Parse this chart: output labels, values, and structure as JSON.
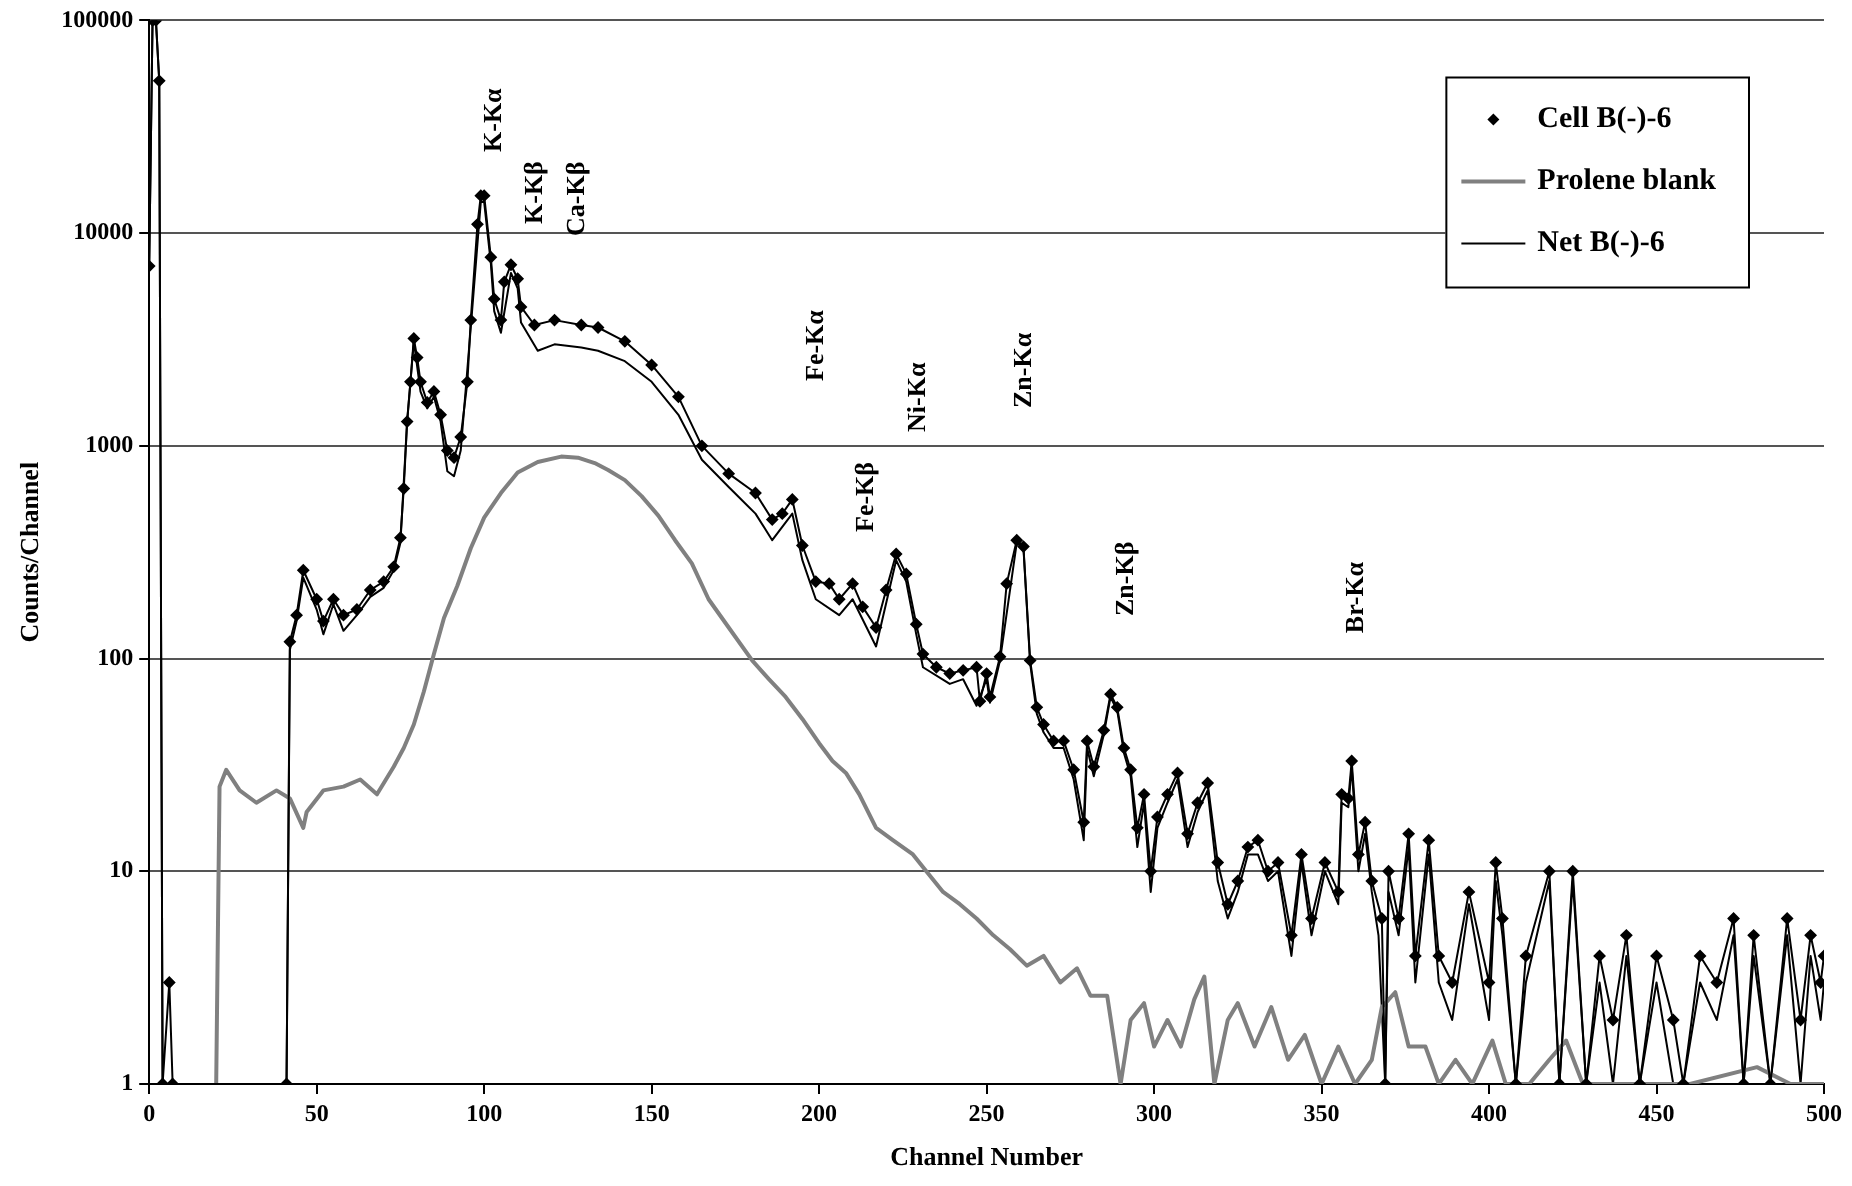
{
  "chart_data": {
    "type": "line",
    "xlabel": "Channel Number",
    "ylabel": "Counts/Channel",
    "xlim": [
      0,
      500
    ],
    "xticks": [
      0,
      50,
      100,
      150,
      200,
      250,
      300,
      350,
      400,
      450,
      500
    ],
    "ylim": [
      1,
      100000
    ],
    "yticks": [
      1,
      10,
      100,
      1000,
      10000,
      100000
    ],
    "log": "y",
    "grid": "y",
    "legend": "top right",
    "series": [
      {
        "name": "Cell B(-)-6",
        "color": "#000000",
        "marker": "diamond",
        "x": [
          0,
          1,
          2,
          3,
          4,
          6,
          7,
          41,
          42,
          44,
          46,
          50,
          52,
          55,
          58,
          62,
          66,
          70,
          73,
          75,
          76,
          77,
          78,
          79,
          80,
          81,
          83,
          85,
          87,
          89,
          91,
          93,
          95,
          96,
          98,
          99,
          100,
          102,
          103,
          105,
          106,
          108,
          110,
          111,
          115,
          121,
          129,
          134,
          142,
          150,
          158,
          165,
          173,
          181,
          186,
          189,
          192,
          195,
          199,
          203,
          206,
          210,
          213,
          217,
          220,
          223,
          226,
          229,
          231,
          235,
          239,
          243,
          247,
          248,
          250,
          251,
          254,
          256,
          259,
          261,
          263,
          265,
          267,
          270,
          273,
          276,
          279,
          280,
          282,
          285,
          287,
          289,
          291,
          293,
          295,
          297,
          299,
          301,
          304,
          307,
          310,
          313,
          316,
          319,
          322,
          325,
          328,
          331,
          334,
          337,
          341,
          344,
          347,
          351,
          355,
          356,
          358,
          359,
          361,
          363,
          365,
          368,
          369,
          370,
          373,
          376,
          378,
          382,
          385,
          389,
          394,
          400,
          402,
          404,
          408,
          411,
          418,
          421,
          425,
          429,
          433,
          437,
          441,
          445,
          450,
          455,
          458,
          463,
          468,
          473,
          476,
          479,
          484,
          489,
          493,
          496,
          499,
          500
        ],
        "values": [
          7000,
          100000,
          100000,
          52000,
          1,
          3,
          1,
          1,
          120,
          160,
          260,
          190,
          150,
          190,
          160,
          170,
          210,
          230,
          270,
          370,
          630,
          1300,
          2000,
          3200,
          2600,
          2000,
          1600,
          1800,
          1400,
          950,
          880,
          1100,
          2000,
          3900,
          11000,
          15000,
          15000,
          7700,
          4900,
          3900,
          5900,
          7100,
          6100,
          4500,
          3700,
          3900,
          3700,
          3600,
          3100,
          2400,
          1700,
          1000,
          740,
          600,
          450,
          480,
          560,
          340,
          230,
          225,
          190,
          225,
          175,
          140,
          210,
          310,
          250,
          145,
          105,
          91,
          85,
          88,
          91,
          63,
          85,
          66,
          102,
          225,
          360,
          336,
          98,
          59,
          49,
          41,
          41,
          30,
          17,
          41,
          31,
          46,
          68,
          59,
          38,
          30,
          16,
          23,
          10,
          18,
          23,
          29,
          15,
          21,
          26,
          11,
          7,
          9,
          13,
          14,
          10,
          11,
          5,
          12,
          6,
          11,
          8,
          23,
          22,
          33,
          12,
          17,
          9,
          6,
          1,
          10,
          6,
          15,
          4,
          14,
          4,
          3,
          8,
          3,
          11,
          6,
          1,
          4,
          10,
          1,
          10,
          1,
          4,
          2,
          5,
          1,
          4,
          2,
          1,
          4,
          3,
          6,
          1,
          5,
          1,
          6,
          2,
          5,
          3,
          4
        ]
      },
      {
        "name": "Prolene blank",
        "color": "#808080",
        "x": [
          20,
          21,
          23,
          27,
          32,
          38,
          42,
          46,
          47,
          52,
          58,
          63,
          68,
          73,
          76,
          79,
          82,
          85,
          88,
          92,
          96,
          100,
          105,
          110,
          116,
          123,
          128,
          133,
          137,
          142,
          147,
          152,
          157,
          162,
          167,
          173,
          180,
          185,
          190,
          195,
          200,
          204,
          208,
          212,
          217,
          222,
          228,
          232,
          237,
          242,
          247,
          252,
          257,
          262,
          267,
          272,
          277,
          281,
          286,
          290,
          293,
          297,
          300,
          304,
          308,
          312,
          315,
          318,
          322,
          325,
          330,
          335,
          340,
          345,
          350,
          355,
          360,
          365,
          368,
          372,
          376,
          381,
          385,
          390,
          395,
          401,
          405,
          412,
          418,
          423,
          428,
          440,
          460,
          480,
          490,
          500
        ],
        "values": [
          1,
          25,
          30,
          24,
          21,
          24,
          22,
          16,
          19,
          24,
          25,
          27,
          23,
          31,
          38,
          49,
          70,
          105,
          155,
          220,
          330,
          460,
          600,
          750,
          840,
          890,
          880,
          830,
          770,
          690,
          580,
          470,
          360,
          280,
          190,
          140,
          98,
          80,
          66,
          52,
          40,
          33,
          29,
          23,
          16,
          14,
          12,
          10,
          8,
          7,
          6,
          5,
          4.3,
          3.6,
          4,
          3,
          3.5,
          2.6,
          2.6,
          1,
          2,
          2.4,
          1.5,
          2,
          1.5,
          2.5,
          3.2,
          1,
          2,
          2.4,
          1.5,
          2.3,
          1.3,
          1.7,
          1,
          1.5,
          1,
          1.3,
          2.3,
          2.7,
          1.5,
          1.5,
          1,
          1.3,
          1,
          1.6,
          1,
          1,
          1.3,
          1.6,
          1,
          1,
          1,
          1.2,
          1,
          1
        ]
      },
      {
        "name": "Net B(-)-6",
        "color": "#000000",
        "x": [
          0,
          1,
          2,
          3,
          4,
          41,
          42,
          44,
          46,
          50,
          52,
          55,
          58,
          62,
          66,
          70,
          73,
          75,
          77,
          79,
          81,
          83,
          85,
          87,
          89,
          91,
          93,
          96,
          99,
          100,
          102,
          103,
          105,
          108,
          110,
          111,
          116,
          121,
          129,
          134,
          142,
          150,
          158,
          165,
          173,
          181,
          186,
          192,
          195,
          199,
          206,
          210,
          217,
          223,
          226,
          229,
          231,
          239,
          243,
          247,
          250,
          251,
          254,
          259,
          261,
          263,
          265,
          267,
          270,
          273,
          276,
          279,
          280,
          282,
          285,
          287,
          289,
          291,
          293,
          295,
          297,
          299,
          301,
          304,
          307,
          310,
          313,
          316,
          319,
          322,
          325,
          328,
          331,
          334,
          337,
          341,
          344,
          347,
          351,
          355,
          356,
          358,
          359,
          361,
          363,
          365,
          367,
          369,
          370,
          373,
          376,
          378,
          382,
          385,
          389,
          394,
          400,
          402,
          404,
          408,
          411,
          418,
          421,
          425,
          429,
          433,
          437,
          441,
          445,
          450,
          455,
          458,
          463,
          468,
          473,
          476,
          479,
          484,
          489,
          493,
          496,
          499,
          500
        ],
        "values": [
          7000,
          100000,
          100000,
          52000,
          1,
          1,
          110,
          150,
          240,
          170,
          130,
          180,
          135,
          160,
          195,
          215,
          260,
          350,
          1300,
          3100,
          1800,
          1500,
          1700,
          1300,
          760,
          720,
          950,
          3600,
          14000,
          14000,
          7200,
          4300,
          3400,
          6500,
          5500,
          3800,
          2800,
          3000,
          2900,
          2800,
          2500,
          2000,
          1400,
          860,
          640,
          480,
          360,
          480,
          290,
          190,
          160,
          190,
          114,
          290,
          230,
          130,
          91,
          76,
          80,
          60,
          80,
          62,
          98,
          350,
          330,
          95,
          55,
          45,
          38,
          38,
          27,
          14,
          38,
          28,
          44,
          66,
          57,
          36,
          28,
          13,
          21,
          8,
          16,
          21,
          27,
          13,
          19,
          24,
          9,
          6,
          8,
          12,
          12,
          9,
          10,
          4,
          11,
          5,
          10,
          7,
          21,
          20,
          31,
          10,
          15,
          8,
          5,
          1,
          8,
          5,
          13,
          3,
          12,
          3,
          2,
          7,
          2,
          9,
          5,
          1,
          3,
          9,
          1,
          9,
          1,
          3,
          1,
          4,
          1,
          3,
          1,
          1,
          3,
          2,
          5,
          1,
          4,
          1,
          5,
          1,
          4,
          2,
          3
        ]
      }
    ],
    "annotations": [
      "K-Kα",
      "K-Kβ",
      "Ca-Kβ",
      "Fe-Kα",
      "Fe-Kβ",
      "Ni-Kα",
      "Zn-Kα",
      "Zn-Kβ",
      "Br-Kα"
    ]
  }
}
